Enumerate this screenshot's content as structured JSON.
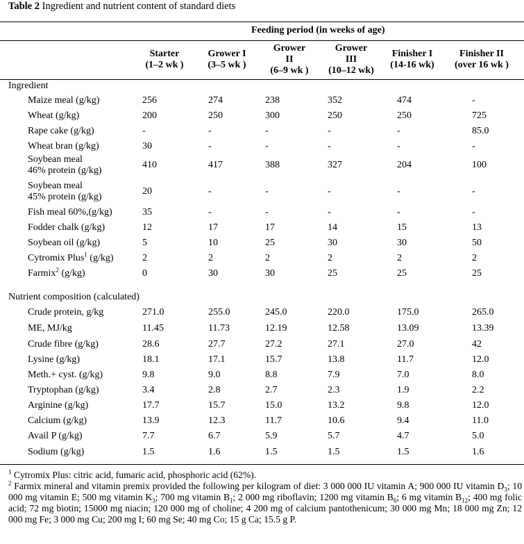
{
  "caption": {
    "label": "Table 2",
    "text": " Ingredient and nutrient content of standard diets"
  },
  "header": {
    "span": "Feeding period (in weeks of age)",
    "columns": [
      {
        "line1": "Starter",
        "line2": "(1–2 wk )",
        "line3": ""
      },
      {
        "line1": "Grower I",
        "line2": "(3–5 wk )",
        "line3": ""
      },
      {
        "line1": "Grower",
        "line2": "II",
        "line3": "(6–9 wk )"
      },
      {
        "line1": "Grower",
        "line2": "III",
        "line3": "(10–12 wk)"
      },
      {
        "line1": "Finisher I",
        "line2": "(14-16 wk)",
        "line3": ""
      },
      {
        "line1": "Finisher II",
        "line2": "(over 16 wk )",
        "line3": ""
      }
    ]
  },
  "sections": {
    "ingredient": "Ingredient",
    "nutrient": "Nutrient composition (calculated)"
  },
  "ingredient_rows": [
    {
      "label": "Maize meal (g/kg)",
      "label2": "",
      "sup": "",
      "tail": "",
      "values": [
        "256",
        "274",
        "238",
        "352",
        "474",
        "-"
      ]
    },
    {
      "label": "Wheat (g/kg)",
      "label2": "",
      "sup": "",
      "tail": "",
      "values": [
        "200",
        "250",
        "300",
        "250",
        "250",
        "725"
      ]
    },
    {
      "label": "Rape cake (g/kg)",
      "label2": "",
      "sup": "",
      "tail": "",
      "values": [
        "-",
        "-",
        "-",
        "-",
        "-",
        "85.0"
      ]
    },
    {
      "label": "Wheat bran (g/kg)",
      "label2": "",
      "sup": "",
      "tail": "",
      "values": [
        "30",
        "-",
        "-",
        "-",
        "-",
        "-"
      ]
    },
    {
      "label": "Soybean meal",
      "label2": "46% protein (g/kg)",
      "sup": "",
      "tail": "",
      "values": [
        "410",
        "417",
        "388",
        "327",
        "204",
        "100"
      ]
    },
    {
      "label": "Soybean meal",
      "label2": "45% protein (g/kg)",
      "sup": "",
      "tail": "",
      "values": [
        "20",
        "-",
        "-",
        "-",
        "-",
        "-"
      ]
    },
    {
      "label": "Fish meal 60%,(g/kg)",
      "label2": "",
      "sup": "",
      "tail": "",
      "values": [
        "35",
        "-",
        "-",
        "-",
        "-",
        "-"
      ]
    },
    {
      "label": "Fodder chalk (g/kg)",
      "label2": "",
      "sup": "",
      "tail": "",
      "values": [
        "12",
        "17",
        "17",
        "14",
        "15",
        "13"
      ]
    },
    {
      "label": "Soybean oil (g/kg)",
      "label2": "",
      "sup": "",
      "tail": "",
      "values": [
        "5",
        "10",
        "25",
        "30",
        "30",
        "50"
      ]
    },
    {
      "label": "Cytromix Plus",
      "label2": "",
      "sup": "1",
      "tail": " (g/kg)",
      "values": [
        "2",
        "2",
        "2",
        "2",
        "2",
        "2"
      ]
    },
    {
      "label": "Farmix",
      "label2": "",
      "sup": "2",
      "tail": " (g/kg)",
      "values": [
        "0",
        "30",
        "30",
        "25",
        "25",
        "25"
      ]
    }
  ],
  "nutrient_rows": [
    {
      "label": "Crude protein, g/kg",
      "values": [
        "271.0",
        "255.0",
        "245.0",
        "220.0",
        "175.0",
        "265.0"
      ]
    },
    {
      "label": "ME, MJ/kg",
      "values": [
        "11.45",
        "11.73",
        "12.19",
        "12.58",
        "13.09",
        "13.39"
      ]
    },
    {
      "label": "Crude fibre (g/kg)",
      "values": [
        "28.6",
        "27.7",
        "27.2",
        "27.1",
        "27.0",
        "42"
      ]
    },
    {
      "label": "Lysine (g/kg)",
      "values": [
        "18.1",
        "17.1",
        "15.7",
        "13.8",
        "11.7",
        "12.0"
      ]
    },
    {
      "label": "Meth.+ cyst. (g/kg)",
      "values": [
        "9.8",
        "9.0",
        "8.8",
        "7.9",
        "7.0",
        "8.0"
      ]
    },
    {
      "label": "Tryptophan (g/kg)",
      "values": [
        "3.4",
        "2.8",
        "2.7",
        "2.3",
        "1.9",
        "2.2"
      ]
    },
    {
      "label": "Arginine (g/kg)",
      "values": [
        "17.7",
        "15.7",
        "15.0",
        "13.2",
        "9.8",
        "12.0"
      ]
    },
    {
      "label": "Calcium (g/kg)",
      "values": [
        "13.9",
        "12.3",
        "11.7",
        "10.6",
        "9.4",
        "11.0"
      ]
    },
    {
      "label": "Avail P (g/kg)",
      "values": [
        "7.7",
        "6.7",
        "5.9",
        "5.7",
        "4.7",
        "5.0"
      ]
    },
    {
      "label": "Sodium (g/kg)",
      "values": [
        "1.5",
        "1.6",
        "1.5",
        "1.5",
        "1.5",
        "1.6"
      ]
    }
  ],
  "footnotes": {
    "fn1_mark": "1",
    "fn1_text": " Cytromix Plus: citric acid, fumaric acid, phosphoric acid (62%).",
    "fn2_mark": "2",
    "fn2_parts": [
      " Farmix mineral and vitamin premix provided the following per kilogram of diet: 3 000 000 IU vitamin A; 900 000 IU vitamin D",
      "3",
      "; 10 000 mg vitamin E; 500 mg vitamin K",
      "3",
      "; 700 mg vitamin B",
      "1",
      "; 2 000 mg riboflavin; 1200 mg vitamin B",
      "6",
      "; 6 mg vitamin B",
      "12",
      "; 400 mg folic acid; 72 mg biotin; 15000 mg niacin; 120 000 mg of choline; 4 200 mg of calcium pantothenicum; 30 000 mg Mn; 18 000 mg Zn; 12 000 mg Fe; 3 000 mg Cu; 200 mg I; 60 mg Se; 40 mg Co; 15 g Ca; 15.5 g P."
    ]
  }
}
